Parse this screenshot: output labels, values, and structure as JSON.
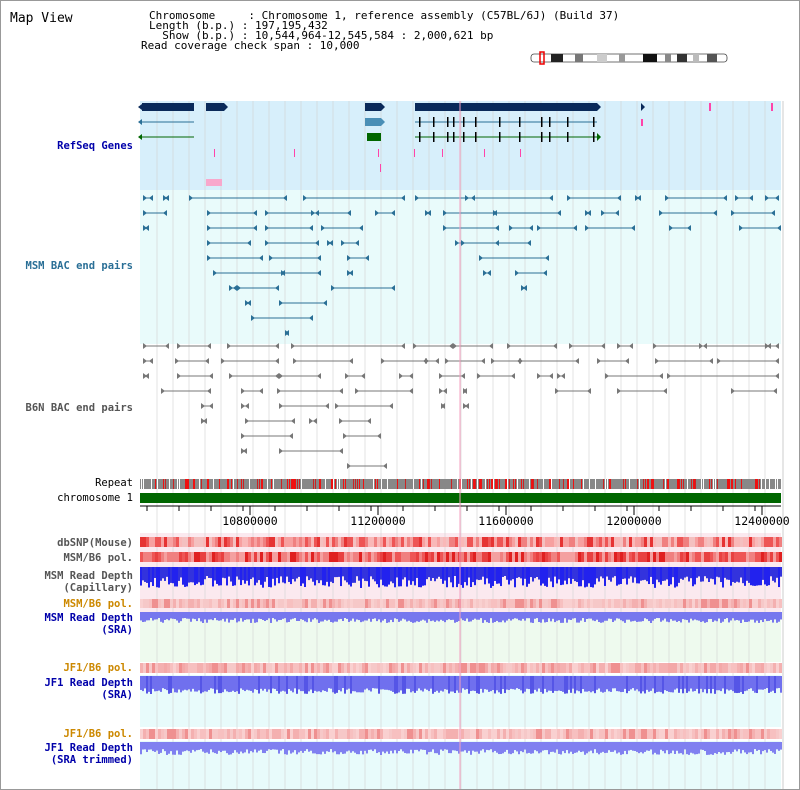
{
  "page": {
    "title": "Map View"
  },
  "info": {
    "chromosome": "Chromosome     : Chromosome 1, reference assembly (C57BL/6J) (Build 37)",
    "length": "Length (b.p.) : 197,195,432",
    "show": "  Show (b.p.) : 10,544,964-12,545,584 : 2,000,621 bp",
    "coverage": "Read coverage check span : 10,000"
  },
  "tracks": {
    "refseq": "RefSeq Genes",
    "msm_bac": "MSM BAC end pairs",
    "b6n_bac": "B6N BAC end pairs",
    "repeat": "Repeat",
    "chromosome": "chromosome 1",
    "dbsnp": "dbSNP(Mouse)",
    "msm_b6_pol": "MSM/B6 pol.",
    "msm_read_depth_cap_1": "MSM Read Depth",
    "msm_read_depth_cap_2": "(Capillary)",
    "msm_b6_pol_sra": "MSM/B6 pol.",
    "msm_read_depth_sra_1": "MSM Read Depth",
    "msm_read_depth_sra_2": "(SRA)",
    "jf1_b6_pol": "JF1/B6 pol.",
    "jf1_read_depth_1": "JF1 Read Depth",
    "jf1_read_depth_2": "(SRA)",
    "jf1_b6_pol_trim": "JF1/B6 pol.",
    "jf1_read_depth_trim_1": "JF1 Read Depth",
    "jf1_read_depth_trim_2": "(SRA trimmed)"
  },
  "axis": {
    "ticks": [
      "10800000",
      "11200000",
      "11600000",
      "12000000",
      "12400000"
    ]
  },
  "colors": {
    "refseq_bg": "#d7effb",
    "bac_bg": "#e8fbfb",
    "msm_color": "#2a6f96",
    "b6n_color": "#777777",
    "chrom_green": "#006600",
    "label_blue": "#0000aa",
    "label_orange": "#cc8800",
    "label_gray": "#555555"
  }
}
